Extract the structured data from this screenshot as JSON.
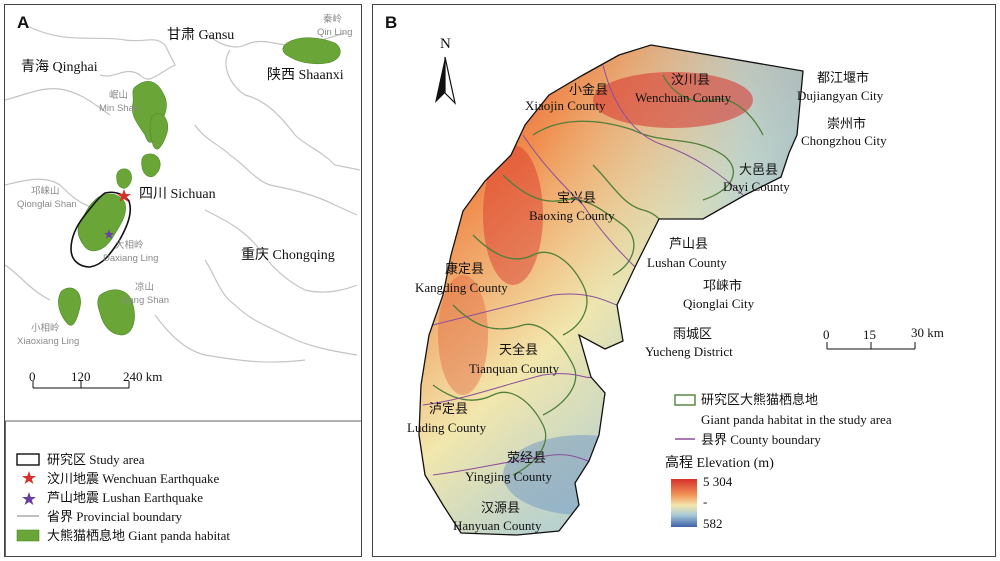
{
  "panel_a": {
    "label": "A",
    "places": {
      "gansu": "甘肃 Gansu",
      "qinghai": "青海 Qinghai",
      "shaanxi": "陕西 Shaanxi",
      "sichuan": "四川 Sichuan",
      "chongqing": "重庆 Chongqing",
      "qinling_cn": "秦岭",
      "qinling_en": "Qin Ling",
      "minshan_cn": "岷山",
      "minshan_en": "Min Shan",
      "qionglaishan_cn": "邛崃山",
      "qionglaishan_en": "Qionglai Shan",
      "daxiangling_cn": "大相岭",
      "daxiangling_en": "Daxiang Ling",
      "liangshan_cn": "凉山",
      "liangshan_en": "Liang Shan",
      "xiaoxiangling_cn": "小相岭",
      "xiaoxiangling_en": "Xiaoxiang Ling"
    },
    "scalebar": {
      "t0": "0",
      "t1": "120",
      "t2": "240 km"
    },
    "legend": {
      "study_area": "研究区 Study area",
      "wenchuan": "汶川地震 Wenchuan Earthquake",
      "lushan": "芦山地震 Lushan Earthquake",
      "boundary": "省界 Provincial boundary",
      "habitat": "大熊猫栖息地 Giant panda habitat"
    }
  },
  "panel_b": {
    "label": "B",
    "north": "N",
    "counties": [
      {
        "cn": "小金县",
        "en": "Xiaojin County"
      },
      {
        "cn": "汶川县",
        "en": "Wenchuan County"
      },
      {
        "cn": "都江堰市",
        "en": "Dujiangyan City"
      },
      {
        "cn": "崇州市",
        "en": "Chongzhou City"
      },
      {
        "cn": "大邑县",
        "en": "Dayi County"
      },
      {
        "cn": "宝兴县",
        "en": "Baoxing County"
      },
      {
        "cn": "芦山县",
        "en": "Lushan County"
      },
      {
        "cn": "康定县",
        "en": "Kangding County"
      },
      {
        "cn": "邛崃市",
        "en": "Qionglai City"
      },
      {
        "cn": "雨城区",
        "en": "Yucheng District"
      },
      {
        "cn": "天全县",
        "en": "Tianquan County"
      },
      {
        "cn": "泸定县",
        "en": "Luding County"
      },
      {
        "cn": "荥经县",
        "en": "Yingjing County"
      },
      {
        "cn": "汉源县",
        "en": "Hanyuan County"
      }
    ],
    "scalebar": {
      "t0": "0",
      "t1": "15",
      "t2": "30 km"
    },
    "legend": {
      "habitat_cn": "研究区大熊猫栖息地",
      "habitat_en": "Giant panda habitat  in the study area",
      "county_boundary": "县界 County boundary",
      "elevation_title": "高程 Elevation (m)",
      "elev_max": "5 304",
      "elev_min": "582",
      "elev_mid_tick": "-"
    },
    "colors": {
      "habitat_outline": "#4f7f3a",
      "county_boundary": "#8a4f9a",
      "elev_high": "#d7312b",
      "elev_mid": "#f2e7ad",
      "elev_low": "#3f62a8"
    }
  }
}
